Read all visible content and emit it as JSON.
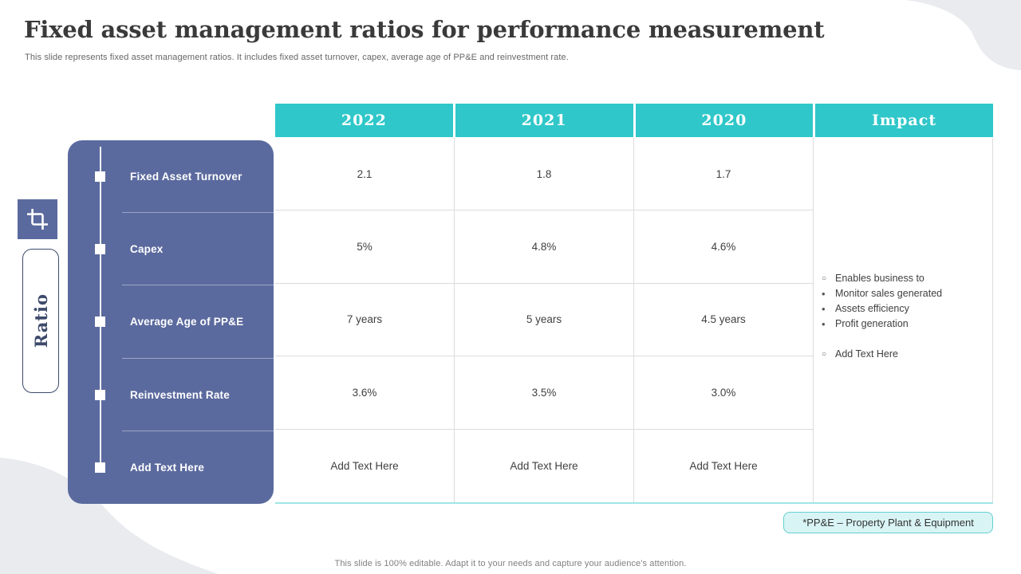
{
  "slide": {
    "title": "Fixed asset management ratios for performance measurement",
    "subtitle": "This slide represents fixed asset management ratios. It includes fixed asset turnover, capex, average age of PP&E and reinvestment rate.",
    "side_label": "Ratio",
    "footnote": "*PP&E – Property Plant & Equipment",
    "footer": "This slide is 100% editable. Adapt it to your needs and capture your audience's attention.",
    "placeholder_text": "Add Text Here"
  },
  "table": {
    "columns": [
      "2022",
      "2021",
      "2020",
      "Impact"
    ],
    "rows": [
      {
        "label": "Fixed Asset Turnover",
        "values": [
          "2.1",
          "1.8",
          "1.7"
        ]
      },
      {
        "label": "Capex",
        "values": [
          "5%",
          "4.8%",
          "4.6%"
        ]
      },
      {
        "label": "Average Age of PP&E",
        "values": [
          "7 years",
          "5 years",
          "4.5 years"
        ]
      },
      {
        "label": "Reinvestment Rate",
        "values": [
          "3.6%",
          "3.5%",
          "3.0%"
        ]
      },
      {
        "label": "Add Text Here",
        "values": [
          "Add Text Here",
          "Add Text Here",
          "Add Text Here"
        ]
      }
    ],
    "impact_items": [
      {
        "bullet": "circle",
        "text": "Enables business to",
        "spaced": false
      },
      {
        "bullet": "dot",
        "text": "Monitor sales generated",
        "spaced": false
      },
      {
        "bullet": "dot",
        "text": "Assets efficiency",
        "spaced": false
      },
      {
        "bullet": "dot",
        "text": "Profit generation",
        "spaced": false
      },
      {
        "bullet": "circle",
        "text": "Add Text Here",
        "spaced": true
      }
    ]
  },
  "colors": {
    "teal_header": "#2fc7c9",
    "teal_line": "#9fe5e6",
    "pill_bg": "#d9f4f5",
    "pill_border": "#62cfd1",
    "panel_purple": "#5b6a9e",
    "navy": "#3d4a6b",
    "blob_gray": "#e9ebef",
    "text_dark": "#3a3a3a",
    "text_gray": "#818181"
  },
  "icons": {
    "crop": "crop-icon",
    "square_bullet": "square-bullet-icon",
    "circle_bullet": "circle-bullet-icon",
    "dot_bullet": "dot-bullet-icon"
  }
}
